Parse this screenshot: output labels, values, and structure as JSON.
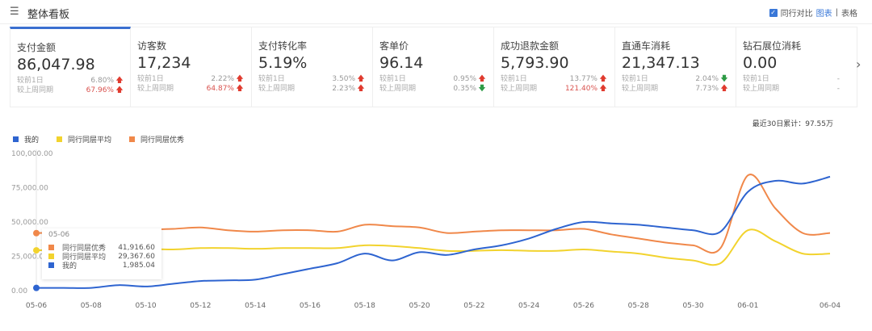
{
  "header": {
    "title": "整体看板",
    "compare_label": "同行对比",
    "view_chart": "图表",
    "separator": "|",
    "view_table": "表格"
  },
  "cards": [
    {
      "label": "支付金额",
      "value": "86,047.98",
      "rows": [
        {
          "k": "较前1日",
          "p": "6.80%",
          "dir": "up",
          "red": false
        },
        {
          "k": "较上周同期",
          "p": "67.96%",
          "dir": "up",
          "red": true
        }
      ]
    },
    {
      "label": "访客数",
      "value": "17,234",
      "rows": [
        {
          "k": "较前1日",
          "p": "2.22%",
          "dir": "up",
          "red": false
        },
        {
          "k": "较上周同期",
          "p": "64.87%",
          "dir": "up",
          "red": true
        }
      ]
    },
    {
      "label": "支付转化率",
      "value": "5.19%",
      "rows": [
        {
          "k": "较前1日",
          "p": "3.50%",
          "dir": "up",
          "red": false
        },
        {
          "k": "较上周同期",
          "p": "2.23%",
          "dir": "up",
          "red": false
        }
      ]
    },
    {
      "label": "客单价",
      "value": "96.14",
      "rows": [
        {
          "k": "较前1日",
          "p": "0.95%",
          "dir": "up",
          "red": false
        },
        {
          "k": "较上周同期",
          "p": "0.35%",
          "dir": "down",
          "red": false
        }
      ]
    },
    {
      "label": "成功退款金额",
      "value": "5,793.90",
      "rows": [
        {
          "k": "较前1日",
          "p": "13.77%",
          "dir": "up",
          "red": false
        },
        {
          "k": "较上周同期",
          "p": "121.40%",
          "dir": "up",
          "red": true
        }
      ]
    },
    {
      "label": "直通车消耗",
      "value": "21,347.13",
      "rows": [
        {
          "k": "较前1日",
          "p": "2.04%",
          "dir": "down",
          "red": false
        },
        {
          "k": "较上周同期",
          "p": "7.73%",
          "dir": "up",
          "red": false
        }
      ]
    },
    {
      "label": "钻石展位消耗",
      "value": "0.00",
      "rows": [
        {
          "k": "较前1日",
          "p": "-",
          "dir": "",
          "red": false
        },
        {
          "k": "较上周同期",
          "p": "-",
          "dir": "",
          "red": false
        }
      ]
    }
  ],
  "summary": "最近30日累计：97.55万",
  "tooltip": {
    "date": "05-06",
    "rows": [
      {
        "name": "同行同层优秀",
        "value": "41,916.60",
        "color": "#f0884a"
      },
      {
        "name": "同行同层平均",
        "value": "29,367.60",
        "color": "#f2d32e"
      },
      {
        "name": "我的",
        "value": "1,985.04",
        "color": "#2e64d0"
      }
    ]
  },
  "chart_data": {
    "type": "line",
    "yticks": [
      "0.00",
      "25,000.00",
      "50,000.00",
      "75,000.00",
      "100,000.00"
    ],
    "ylim": [
      0,
      100000
    ],
    "xticks": [
      "05-06",
      "05-08",
      "05-10",
      "05-12",
      "05-14",
      "05-16",
      "05-18",
      "05-20",
      "05-22",
      "05-24",
      "05-26",
      "05-28",
      "05-30",
      "06-01",
      "06-04"
    ],
    "series": [
      {
        "name": "我的",
        "color": "#2e64d0",
        "values": [
          1985,
          2000,
          2000,
          4000,
          3000,
          5000,
          7000,
          7500,
          8000,
          12000,
          16000,
          20000,
          27000,
          22000,
          28000,
          26000,
          30000,
          33000,
          38000,
          45000,
          50000,
          49000,
          48000,
          46000,
          44000,
          43000,
          72000,
          80000,
          78000,
          83000
        ]
      },
      {
        "name": "同行同层平均",
        "color": "#f2d32e",
        "values": [
          29368,
          30000,
          30500,
          31000,
          30500,
          30000,
          31000,
          31000,
          30500,
          31000,
          31000,
          31000,
          33000,
          32500,
          31000,
          29000,
          29000,
          29500,
          29000,
          29000,
          30000,
          28500,
          27000,
          24000,
          22000,
          20000,
          44000,
          36000,
          27000,
          27000
        ]
      },
      {
        "name": "同行同层优秀",
        "color": "#f0884a",
        "values": [
          41917,
          42500,
          43000,
          44000,
          44500,
          45000,
          46000,
          44000,
          43000,
          44000,
          44000,
          43000,
          48000,
          47000,
          46000,
          42000,
          43000,
          44000,
          44000,
          44000,
          45000,
          41000,
          38000,
          35000,
          33000,
          31000,
          84000,
          60000,
          42000,
          42000
        ]
      }
    ]
  }
}
